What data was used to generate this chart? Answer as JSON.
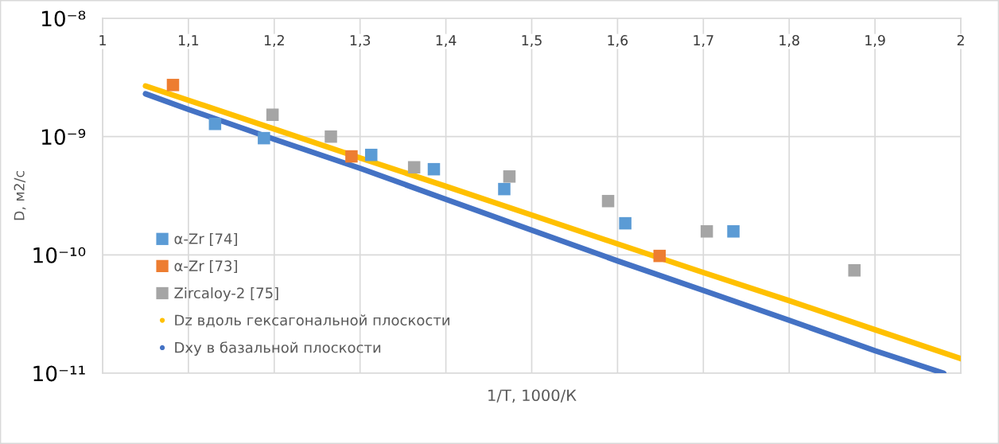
{
  "chart_data": {
    "type": "scatter",
    "xlabel": "1/T, 1000/К",
    "ylabel": "D, м2/с",
    "log": "y",
    "xlim": [
      1,
      2
    ],
    "xticks": [
      1,
      {
        "value": 1.1,
        "label": "1,1"
      },
      {
        "value": 1.2,
        "label": "1,2"
      },
      {
        "value": 1.3,
        "label": "1,3"
      },
      {
        "value": 1.4,
        "label": "1,4"
      },
      {
        "value": 1.5,
        "label": "1,5"
      },
      {
        "value": 1.6,
        "label": "1,6"
      },
      {
        "value": 1.7,
        "label": "1,7"
      },
      {
        "value": 1.8,
        "label": "1,8"
      },
      {
        "value": 1.9,
        "label": "1,9"
      },
      2
    ],
    "ylim": [
      1e-11,
      1e-08
    ],
    "yticks": [
      {
        "value": 1e-11,
        "label": "10⁻¹¹"
      },
      {
        "value": 1e-10,
        "label": "10⁻¹⁰"
      },
      {
        "value": 1e-09,
        "label": "10⁻⁹"
      },
      {
        "value": 1e-08,
        "label": "10⁻⁸"
      }
    ],
    "grid": true,
    "legend": "lower left",
    "marker": "square",
    "series": [
      {
        "name": "α-Zr [74]",
        "color": "#5b9bd5",
        "x": [
          1.131,
          1.188,
          1.313,
          1.386,
          1.468,
          1.609,
          1.735
        ],
        "values": [
          1.28e-09,
          9.7e-10,
          7e-10,
          5.3e-10,
          3.6e-10,
          1.85e-10,
          1.58e-10
        ]
      },
      {
        "name": "α-Zr [73]",
        "color": "#ed7d31",
        "x": [
          1.082,
          1.29,
          1.649
        ],
        "values": [
          2.73e-09,
          6.8e-10,
          9.8e-11
        ]
      },
      {
        "name": "Zircaloy-2 [75]",
        "color": "#a5a5a5",
        "x": [
          1.198,
          1.266,
          1.363,
          1.474,
          1.589,
          1.704,
          1.876
        ],
        "values": [
          1.53e-09,
          1e-09,
          5.5e-10,
          4.6e-10,
          2.85e-10,
          1.58e-10,
          7.4e-11
        ]
      },
      {
        "name": "Dz вдоль гексагональной плоскости",
        "type": "line",
        "marker": "none",
        "color": "#ffc000",
        "x": [
          1.05,
          1.1,
          1.2,
          1.3,
          1.4,
          1.5,
          1.6,
          1.7,
          1.8,
          1.9,
          2.0
        ],
        "values": [
          2.68e-09,
          2.03e-09,
          1.16e-09,
          6.6e-10,
          3.8e-10,
          2.17e-10,
          1.24e-10,
          7.1e-11,
          4.1e-11,
          2.33e-11,
          1.33e-11
        ]
      },
      {
        "name": "Dxy в базальной плоскости",
        "type": "line",
        "marker": "none",
        "color": "#4472c4",
        "x": [
          1.05,
          1.1,
          1.2,
          1.3,
          1.4,
          1.5,
          1.6,
          1.7,
          1.8,
          1.9,
          1.98
        ],
        "values": [
          2.3e-09,
          1.7e-09,
          9.5e-10,
          5.4e-10,
          2.95e-10,
          1.62e-10,
          8.9e-11,
          5e-11,
          2.8e-11,
          1.55e-11,
          1e-11
        ]
      }
    ]
  }
}
